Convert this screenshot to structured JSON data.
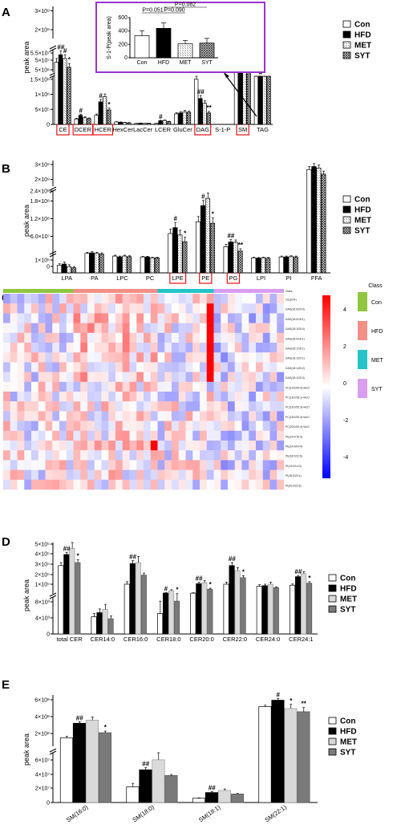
{
  "legend": {
    "groups": [
      "Con",
      "HFD",
      "MET",
      "SYT"
    ]
  },
  "chart_data": [
    {
      "panel": "A",
      "type": "bar",
      "ylabel": "peak area",
      "categories": [
        "CE",
        "DCER",
        "HCER",
        "HexCer",
        "LacCer",
        "LCER",
        "GluCer",
        "DAG",
        "S-1-P",
        "SM",
        "TAG"
      ],
      "highlighted": [
        "CE",
        "DCER",
        "HCER",
        "DAG",
        "SM"
      ],
      "lower_ticks": [
        "5×10⁶",
        "1×10⁶",
        "1.5×10⁶",
        "1×10⁶",
        "5×10⁵",
        "0"
      ],
      "upper_ticks": [
        "5×10⁷",
        "5.5×10⁷",
        "2×10⁹",
        "3×10⁹"
      ],
      "series": [
        {
          "name": "Con",
          "values": [
            53000000.0,
            180000,
            300000,
            80000,
            30000,
            30000,
            350000,
            1500000,
            0,
            2600000000.0,
            15000000.0
          ]
        },
        {
          "name": "HFD",
          "values": [
            56000000.0,
            300000,
            750000,
            70000,
            40000,
            120000,
            380000,
            860000,
            0,
            2750000000.0,
            17000000.0
          ]
        },
        {
          "name": "MET",
          "values": [
            54500000.0,
            220000,
            920000,
            60000,
            30000,
            130000,
            420000,
            700000,
            0,
            2600000000.0,
            14000000.0
          ]
        },
        {
          "name": "SYT",
          "values": [
            51000000.0,
            190000,
            480000,
            50000,
            35000,
            90000,
            400000,
            380000,
            0,
            2400000000.0,
            13000000.0
          ]
        }
      ],
      "errors": [
        [
          1500000.0,
          25000,
          45000,
          10000,
          6000,
          6000,
          40000,
          120000,
          0,
          70000000.0,
          1000000.0
        ],
        [
          1500000.0,
          40000,
          80000,
          10000,
          6000,
          15000,
          45000,
          100000,
          0,
          80000000.0,
          1000000.0
        ],
        [
          1500000.0,
          30000,
          90000,
          10000,
          6000,
          15000,
          45000,
          80000,
          0,
          60000000.0,
          1000000.0
        ],
        [
          1500000.0,
          25000,
          60000,
          10000,
          6000,
          12000,
          45000,
          50000,
          0,
          60000000.0,
          1000000.0
        ]
      ],
      "significance": [
        {
          "category": "CE",
          "labels": [
            "##",
            "#",
            "*"
          ]
        },
        {
          "category": "DCER",
          "labels": [
            "#"
          ]
        },
        {
          "category": "HCER",
          "labels": [
            "#",
            "*"
          ]
        },
        {
          "category": "LCER",
          "labels": [
            "#"
          ]
        },
        {
          "category": "DAG",
          "labels": [
            "##",
            "**"
          ]
        },
        {
          "category": "SM",
          "labels": [
            "#",
            "*"
          ]
        },
        {
          "category": "TAG",
          "labels": [
            "#"
          ]
        }
      ],
      "inset": {
        "ylabel": "S-1-P(peak area)",
        "categories": [
          "Con",
          "HFD",
          "MET",
          "SYT"
        ],
        "values": [
          330,
          440,
          210,
          220
        ],
        "errors": [
          75,
          80,
          50,
          70
        ],
        "ylim": [
          0,
          600
        ],
        "yticks": [
          "0",
          "200",
          "400",
          "600"
        ],
        "pvalues": [
          "P=0.051",
          "P=0.090",
          "P=0.082"
        ]
      }
    },
    {
      "panel": "B",
      "type": "bar",
      "ylabel": "peak area",
      "categories": [
        "LPA",
        "PA",
        "LPC",
        "PC",
        "LPE",
        "PE",
        "PG",
        "LPI",
        "PI",
        "FFA"
      ],
      "highlighted": [
        "LPE",
        "PE",
        "PG"
      ],
      "lower_ticks": [
        "1×10⁶",
        "0"
      ],
      "upper_ticks": [
        "6.0×10⁷",
        "1.2×10⁸",
        "1.8×10⁸",
        "2.4×10⁸",
        "2×10⁹",
        "3×10⁹"
      ],
      "series": [
        {
          "name": "Con",
          "values": [
            600000,
            42000000.0,
            33000000.0,
            30000000.0,
            110000000.0,
            150000000.0,
            65000000.0,
            27000000.0,
            30000000.0,
            2600000000.0
          ]
        },
        {
          "name": "HFD",
          "values": [
            700000,
            44000000.0,
            30000000.0,
            30000000.0,
            130000000.0,
            205000000.0,
            81000000.0,
            26000000.0,
            30000000.0,
            2800000000.0
          ]
        },
        {
          "name": "MET",
          "values": [
            500000,
            42000000.0,
            33000000.0,
            27000000.0,
            105000000.0,
            230000000.0,
            80000000.0,
            27000000.0,
            31000000.0,
            2700000000.0
          ]
        },
        {
          "name": "SYT",
          "values": [
            400000,
            40000000.0,
            31000000.0,
            27000000.0,
            82000000.0,
            145000000.0,
            50000000.0,
            26000000.0,
            30000000.0,
            2300000000.0
          ]
        }
      ],
      "errors": [
        [
          120000,
          4000000.0,
          3000000.0,
          2000000.0,
          15000000.0,
          18000000.0,
          8000000.0,
          2000000.0,
          3000000.0,
          200000000.0
        ],
        [
          150000,
          4000000.0,
          3000000.0,
          2000000.0,
          18000000.0,
          18000000.0,
          8000000.0,
          2000000.0,
          3000000.0,
          200000000.0
        ],
        [
          150000,
          4000000.0,
          3000000.0,
          2000000.0,
          16000000.0,
          18000000.0,
          8000000.0,
          2000000.0,
          3000000.0,
          200000000.0
        ],
        [
          100000,
          4000000.0,
          3000000.0,
          2000000.0,
          15000000.0,
          18000000.0,
          8000000.0,
          2000000.0,
          3000000.0,
          200000000.0
        ]
      ],
      "significance": [
        {
          "category": "LPE",
          "labels": [
            "#",
            "*"
          ]
        },
        {
          "category": "PE",
          "labels": [
            "#",
            "*"
          ]
        },
        {
          "category": "PG",
          "labels": [
            "##",
            "**"
          ]
        }
      ]
    },
    {
      "panel": "C",
      "type": "heatmap",
      "groups": [
        "Con",
        "HFD",
        "MET",
        "SYT"
      ],
      "group_colors": [
        "#8fc63e",
        "#f28f86",
        "#25c4c8",
        "#d99df0"
      ],
      "row_labels": [
        "Class",
        "CE(20:4)",
        "DAG(16:0/20:4)",
        "DAG(16:0/18:1)",
        "DAG(18:1/20:4)",
        "DAG(18:0/18:1)",
        "DAG(18:1/18:1)",
        "DAG(18:1/20:1)",
        "DAG(18:1/20:2)",
        "DAG(18:1/20:3)",
        "PC(14:0/20:4)+AcO",
        "PC(18:0/18:1)+AcO",
        "PC(16:0/20:3)+AcO",
        "PC(18:0/20:3)+AcO",
        "PC(20:0/20:4)+AcO",
        "PE(14:0/18:3)",
        "PE(14:0/04:4)",
        "PE(18:2/22:6)",
        "PI(14:0/14:0)",
        "PI(16:0/20:1)",
        "PI(20:0/22:6)"
      ],
      "colorbar_ticks": [
        "4",
        "2",
        "0",
        "-2",
        "-4"
      ],
      "legend_title": "Class",
      "legend_items": [
        "Con",
        "HFD",
        "MET",
        "SYT"
      ]
    },
    {
      "panel": "D",
      "type": "bar",
      "ylabel": "peak area",
      "categories": [
        "total CER",
        "CER14:0",
        "CER16:0",
        "CER18:0",
        "CER20:0",
        "CER22:0",
        "CER24:0",
        "CER24:1"
      ],
      "lower_ticks": [
        "0",
        "4×10³",
        "8×10³"
      ],
      "upper_ticks": [
        "1×10⁵",
        "2×10⁵",
        "3×10⁵",
        "4×10⁵",
        "5×10⁵"
      ],
      "series": [
        {
          "name": "Con",
          "values": [
            290000,
            4200,
            105000,
            5000,
            16000,
            105000,
            85000,
            95000
          ]
        },
        {
          "name": "HFD",
          "values": [
            400000,
            5200,
            310000,
            17000,
            110000,
            290000,
            90000,
            180000
          ]
        },
        {
          "name": "MET",
          "values": [
            460000,
            6000,
            320000,
            40000,
            120000,
            240000,
            105000,
            210000
          ]
        },
        {
          "name": "SYT",
          "values": [
            320000,
            3700,
            195000,
            8000,
            55000,
            170000,
            70000,
            115000
          ]
        }
      ],
      "errors": [
        [
          30000,
          800,
          25000,
          3000,
          4000,
          20000,
          15000,
          12000
        ],
        [
          20000,
          900,
          30000,
          4000,
          15000,
          30000,
          15000,
          12000
        ],
        [
          80000,
          1200,
          60000,
          10000,
          20000,
          30000,
          20000,
          20000
        ],
        [
          30000,
          700,
          20000,
          3000,
          10000,
          20000,
          10000,
          15000
        ]
      ],
      "significance": [
        {
          "category": "total CER",
          "labels": [
            "##",
            "*"
          ]
        },
        {
          "category": "CER16:0",
          "labels": [
            "##"
          ]
        },
        {
          "category": "CER18:0",
          "labels": [
            "#",
            "*"
          ]
        },
        {
          "category": "CER20:0",
          "labels": [
            "##",
            "*"
          ]
        },
        {
          "category": "CER22:0",
          "labels": [
            "##",
            "*"
          ]
        },
        {
          "category": "CER24:1",
          "labels": [
            "##",
            "*"
          ]
        }
      ]
    },
    {
      "panel": "E",
      "type": "bar",
      "ylabel": "peak area",
      "categories": [
        "SM(16:0)",
        "SM(18:0)",
        "SM(18:1)",
        "SM(22:1)"
      ],
      "lower_ticks": [
        "0",
        "2×10⁷",
        "4×10⁷",
        "6×10⁷"
      ],
      "upper_ticks": [
        "2×10⁸",
        "4×10⁸",
        "6×10⁸"
      ],
      "series": [
        {
          "name": "Con",
          "values": [
            240000000.0,
            22000000.0,
            6000000.0,
            540000000.0
          ]
        },
        {
          "name": "HFD",
          "values": [
            380000000.0,
            46000000.0,
            14000000.0,
            600000000.0
          ]
        },
        {
          "name": "MET",
          "values": [
            410000000.0,
            60000000.0,
            17000000.0,
            520000000.0
          ]
        },
        {
          "name": "SYT",
          "values": [
            290000000.0,
            38000000.0,
            12000000.0,
            490000000.0
          ]
        }
      ],
      "errors": [
        [
          15000000.0,
          5000000.0,
          500000.0,
          12000000.0
        ],
        [
          15000000.0,
          3000000.0,
          1500000.0,
          15000000.0
        ],
        [
          30000000.0,
          10000000.0,
          2000000.0,
          40000000.0
        ],
        [
          15000000.0,
          1500000.0,
          700000.0,
          40000000.0
        ]
      ],
      "significance": [
        {
          "category": "SM(16:0)",
          "labels": [
            "##",
            "*"
          ]
        },
        {
          "category": "SM(18:0)",
          "labels": [
            "##"
          ]
        },
        {
          "category": "SM(18:1)",
          "labels": [
            "##"
          ]
        },
        {
          "category": "SM(22:1)",
          "labels": [
            "#",
            "*",
            "**"
          ]
        }
      ]
    }
  ]
}
